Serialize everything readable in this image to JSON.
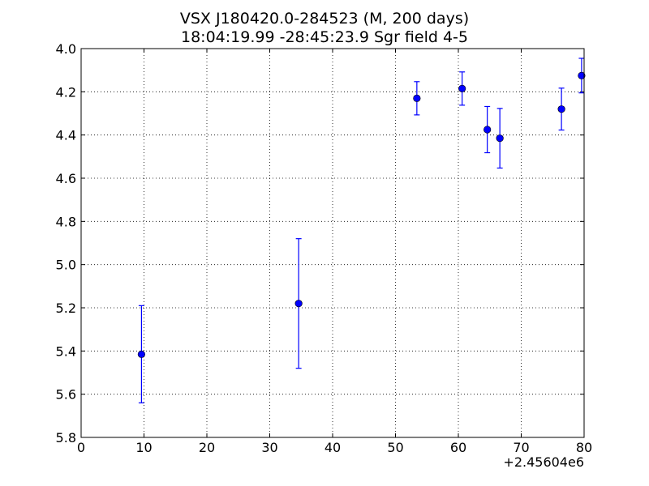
{
  "chart_data": {
    "type": "scatter",
    "title": "VSX J180420.0-284523 (M, 200 days)",
    "subtitle": "18:04:19.99 -28:45:23.9 Sgr field 4-5",
    "xlabel": "",
    "ylabel": "",
    "x_offset_label": "+2.45604e6",
    "xlim": [
      0,
      80
    ],
    "ylim": [
      5.8,
      4.0
    ],
    "y_inverted": true,
    "grid": true,
    "x_ticks": [
      "0",
      "10",
      "20",
      "30",
      "40",
      "50",
      "60",
      "70",
      "80"
    ],
    "y_ticks": [
      "4.0",
      "4.2",
      "4.4",
      "4.6",
      "4.8",
      "5.0",
      "5.2",
      "5.4",
      "5.6",
      "5.8"
    ],
    "series": [
      {
        "color": "#0000ff",
        "points": [
          {
            "x": 9.6,
            "y": 5.415,
            "err": 0.225
          },
          {
            "x": 34.6,
            "y": 5.18,
            "err": 0.3
          },
          {
            "x": 53.4,
            "y": 4.23,
            "err": 0.077
          },
          {
            "x": 60.6,
            "y": 4.185,
            "err": 0.077
          },
          {
            "x": 64.6,
            "y": 4.375,
            "err": 0.107
          },
          {
            "x": 66.6,
            "y": 4.415,
            "err": 0.138
          },
          {
            "x": 76.4,
            "y": 4.28,
            "err": 0.097
          },
          {
            "x": 79.6,
            "y": 4.125,
            "err": 0.08
          }
        ]
      }
    ]
  }
}
